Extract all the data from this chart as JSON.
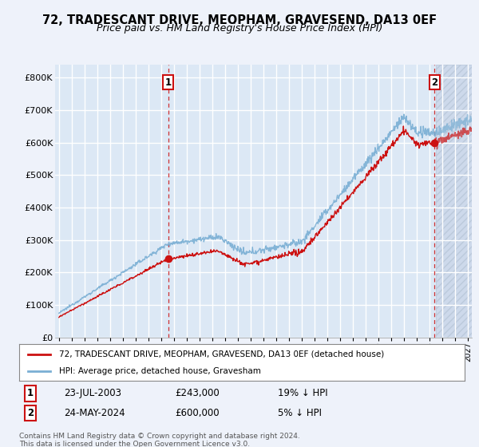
{
  "title": "72, TRADESCANT DRIVE, MEOPHAM, GRAVESEND, DA13 0EF",
  "subtitle": "Price paid vs. HM Land Registry's House Price Index (HPI)",
  "ylabel_ticks": [
    "£0",
    "£100K",
    "£200K",
    "£300K",
    "£400K",
    "£500K",
    "£600K",
    "£700K",
    "£800K"
  ],
  "ytick_values": [
    0,
    100000,
    200000,
    300000,
    400000,
    500000,
    600000,
    700000,
    800000
  ],
  "ylim": [
    0,
    840000
  ],
  "xlim_start": 1994.7,
  "xlim_end": 2027.3,
  "background_color": "#eef2fa",
  "plot_bg_color": "#dce8f5",
  "future_bg_color": "#d0d8e8",
  "grid_color": "#ffffff",
  "hpi_color": "#7aafd4",
  "price_color": "#cc1111",
  "sale1_date": "23-JUL-2003",
  "sale1_price": 243000,
  "sale1_pct": "19% ↓ HPI",
  "sale1_x": 2003.55,
  "sale2_date": "24-MAY-2024",
  "sale2_price": 600000,
  "sale2_pct": "5% ↓ HPI",
  "sale2_x": 2024.39,
  "data_end_x": 2024.5,
  "legend_label_price": "72, TRADESCANT DRIVE, MEOPHAM, GRAVESEND, DA13 0EF (detached house)",
  "legend_label_hpi": "HPI: Average price, detached house, Gravesham",
  "footer": "Contains HM Land Registry data © Crown copyright and database right 2024.\nThis data is licensed under the Open Government Licence v3.0.",
  "title_fontsize": 10.5,
  "subtitle_fontsize": 9
}
